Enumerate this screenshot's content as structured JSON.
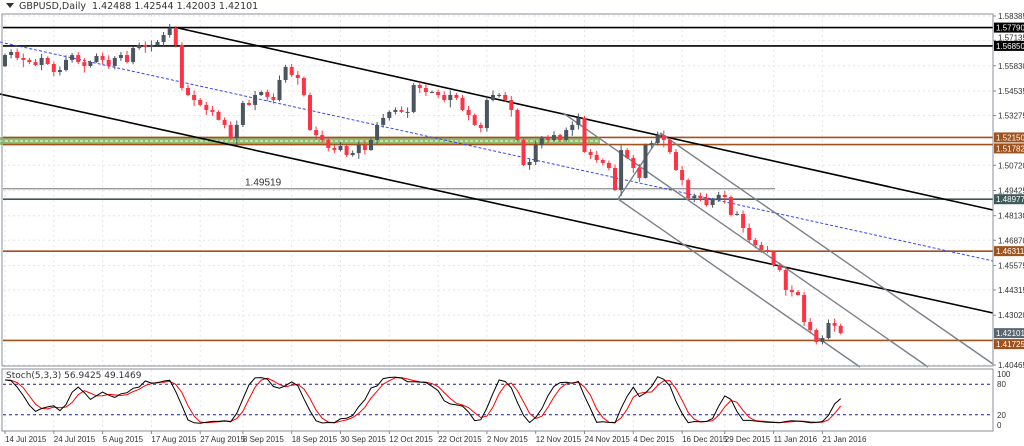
{
  "header": {
    "symbol": "GBPUSD,Daily",
    "ohlc": "1.42488 1.42544 1.42003 1.42101"
  },
  "stochastic": {
    "label": "Stoch(5,3,3) 56.9425 49.1469",
    "levels": [
      80,
      20
    ],
    "axis": [
      "100",
      "80",
      "20",
      "0"
    ],
    "k_color": "#000000",
    "d_color": "#ff0000"
  },
  "chart_data": {
    "type": "candlestick",
    "title": "GBPUSD,Daily",
    "first_open": 1.558,
    "closes": [
      1.5638,
      1.5654,
      1.5623,
      1.5613,
      1.5602,
      1.5587,
      1.5623,
      1.5592,
      1.5551,
      1.5561,
      1.5613,
      1.5638,
      1.5602,
      1.5582,
      1.5602,
      1.5633,
      1.5613,
      1.5582,
      1.5623,
      1.5638,
      1.5602,
      1.5674,
      1.569,
      1.5679,
      1.569,
      1.5705,
      1.5741,
      1.5777,
      1.569,
      1.5469,
      1.5433,
      1.5407,
      1.5382,
      1.5356,
      1.5346,
      1.5305,
      1.5279,
      1.5212,
      1.5279,
      1.5392,
      1.5382,
      1.5433,
      1.5448,
      1.5423,
      1.5407,
      1.551,
      1.5577,
      1.5536,
      1.552,
      1.5433,
      1.5253,
      1.5227,
      1.5202,
      1.5161,
      1.515,
      1.5171,
      1.5125,
      1.5135,
      1.5176,
      1.515,
      1.5202,
      1.5279,
      1.5315,
      1.5346,
      1.5356,
      1.5346,
      1.5346,
      1.5484,
      1.5469,
      1.5448,
      1.5448,
      1.5433,
      1.5407,
      1.5433,
      1.5418,
      1.5356,
      1.533,
      1.5279,
      1.5263,
      1.5407,
      1.5433,
      1.5433,
      1.5407,
      1.5356,
      1.5202,
      1.5073,
      1.5089,
      1.5176,
      1.5212,
      1.5202,
      1.5227,
      1.5202,
      1.5253,
      1.5279,
      1.5315,
      1.514,
      1.5125,
      1.5099,
      1.5084,
      1.5058,
      1.4945,
      1.515,
      1.511,
      1.5058,
      1.5007,
      1.5176,
      1.5186,
      1.5227,
      1.5202,
      1.514,
      1.5048,
      1.4996,
      1.4904,
      1.4914,
      1.4904,
      1.4868,
      1.4894,
      1.492,
      1.4909,
      1.4817,
      1.4822,
      1.475,
      1.4688,
      1.4663,
      1.4637,
      1.4627,
      1.456,
      1.4534,
      1.4432,
      1.4421,
      1.4406,
      1.4267,
      1.4226,
      1.4165,
      1.4185,
      1.4262,
      1.4248,
      1.421
    ],
    "ylim": [
      1.4025,
      1.586
    ],
    "y_ticks": [
      "1.58385",
      "1.57135",
      "1.55830",
      "1.54535",
      "1.53275",
      "1.50720",
      "1.49425",
      "1.48130",
      "1.46870",
      "1.45575",
      "1.44315",
      "1.43020",
      "1.40465"
    ],
    "x_labels": [
      {
        "label": "14 Jul 2015",
        "index": 0
      },
      {
        "label": "24 Jul 2015",
        "index": 8
      },
      {
        "label": "5 Aug 2015",
        "index": 16
      },
      {
        "label": "17 Aug 2015",
        "index": 24
      },
      {
        "label": "27 Aug 2015",
        "index": 32
      },
      {
        "label": "8 Sep 2015",
        "index": 39
      },
      {
        "label": "18 Sep 2015",
        "index": 47
      },
      {
        "label": "30 Sep 2015",
        "index": 55
      },
      {
        "label": "12 Oct 2015",
        "index": 63
      },
      {
        "label": "22 Oct 2015",
        "index": 71
      },
      {
        "label": "2 Nov 2015",
        "index": 79
      },
      {
        "label": "12 Nov 2015",
        "index": 87
      },
      {
        "label": "24 Nov 2015",
        "index": 95
      },
      {
        "label": "4 Dec 2015",
        "index": 103
      },
      {
        "label": "16 Dec 2015",
        "index": 111
      },
      {
        "label": "29 Dec 2015",
        "index": 118
      },
      {
        "label": "11 Jan 2016",
        "index": 126
      },
      {
        "label": "21 Jan 2016",
        "index": 134
      }
    ],
    "levels": [
      {
        "price": 1.5779,
        "label": "1.57790",
        "color": "#000000"
      },
      {
        "price": 1.5685,
        "label": "1.56850",
        "color": "#000000"
      },
      {
        "price": 1.5215,
        "label": "1.52150",
        "color": "#a0521e"
      },
      {
        "price": 1.51782,
        "label": "1.51782",
        "color": "#a0521e"
      },
      {
        "price": 1.48977,
        "label": "1.48977",
        "color": "#3d5a5a"
      },
      {
        "price": 1.46311,
        "label": "1.46311",
        "color": "#a0521e"
      },
      {
        "price": 1.41725,
        "label": "1.41725",
        "color": "#a0521e"
      }
    ],
    "current_price": {
      "label": "1.42101",
      "price": 1.42101,
      "color": "#5a6670"
    },
    "annotation": {
      "label": "1.49519",
      "price": 1.49519
    },
    "bull_color": "#4a5560",
    "bear_color": "#ff3344",
    "zone_color": "#8fbf6f"
  }
}
